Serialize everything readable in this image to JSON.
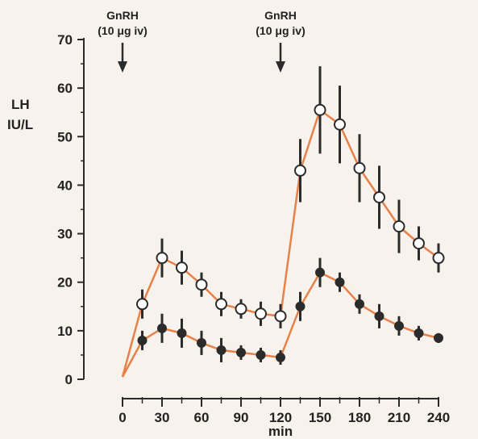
{
  "chart_data": {
    "type": "line",
    "xlabel": "min",
    "ylabel_lines": [
      "LH",
      "IU/L"
    ],
    "xlim": [
      0,
      240
    ],
    "ylim": [
      0,
      70
    ],
    "xticks": [
      0,
      30,
      60,
      90,
      120,
      150,
      180,
      210,
      240
    ],
    "yticks": [
      0,
      10,
      20,
      30,
      40,
      50,
      60,
      70
    ],
    "grid": false,
    "line_color": "#e8804a",
    "annotations": [
      {
        "x": 0,
        "line1": "GnRH",
        "line2": "(10 μg iv)"
      },
      {
        "x": 120,
        "line1": "GnRH",
        "line2": "(10 μg iv)"
      }
    ],
    "series": [
      {
        "marker": "open-circle",
        "x": [
          0,
          15,
          30,
          45,
          60,
          75,
          90,
          105,
          120,
          135,
          150,
          165,
          180,
          195,
          210,
          225,
          240
        ],
        "y": [
          0.5,
          15.5,
          25,
          23,
          19.5,
          15.5,
          14.5,
          13.5,
          13,
          43,
          55.5,
          52.5,
          43.5,
          37.5,
          31.5,
          28,
          25
        ],
        "err": [
          null,
          3,
          4,
          3.5,
          2.5,
          2.5,
          2,
          2.5,
          2.5,
          6.5,
          9,
          8,
          7,
          6.5,
          5.5,
          3.5,
          3
        ]
      },
      {
        "marker": "filled-circle",
        "x": [
          0,
          15,
          30,
          45,
          60,
          75,
          90,
          105,
          120,
          135,
          150,
          165,
          180,
          195,
          210,
          225,
          240
        ],
        "y": [
          0.5,
          8,
          10.5,
          9.5,
          7.5,
          6,
          5.5,
          5,
          4.5,
          15,
          22,
          20,
          15.5,
          13,
          11,
          9.5,
          8.5
        ],
        "err": [
          null,
          2,
          3,
          3,
          2.5,
          2.5,
          1.5,
          1.5,
          1.5,
          3,
          3,
          2,
          2,
          2.5,
          2,
          1.5,
          1
        ]
      }
    ]
  }
}
